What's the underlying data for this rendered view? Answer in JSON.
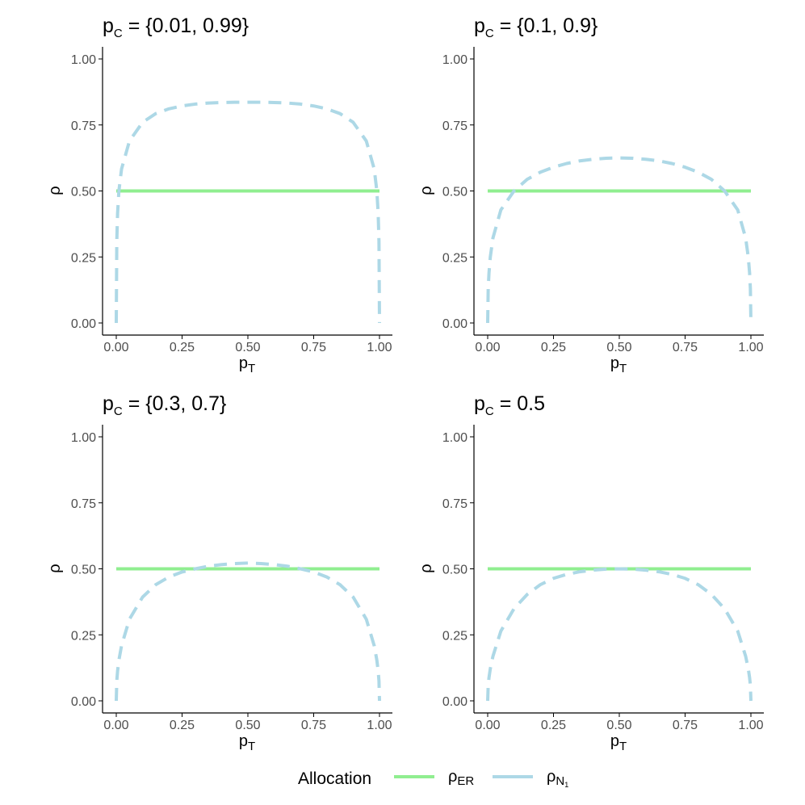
{
  "chart_data": [
    {
      "type": "line",
      "title": {
        "main": "p",
        "sub": "C",
        "rest": " = {0.01, 0.99}"
      },
      "xlabel": {
        "main": "p",
        "sub": "T"
      },
      "ylabel": "ρ",
      "xlim": [
        0,
        1
      ],
      "ylim": [
        0,
        1.05
      ],
      "xticks": [
        "0.00",
        "0.25",
        "0.50",
        "0.75",
        "1.00"
      ],
      "yticks": [
        "0.00",
        "0.25",
        "0.50",
        "0.75",
        "1.00"
      ],
      "x": [
        0.0,
        0.002,
        0.005,
        0.01,
        0.02,
        0.05,
        0.1,
        0.15,
        0.2,
        0.25,
        0.3,
        0.35,
        0.4,
        0.45,
        0.5,
        0.55,
        0.6,
        0.65,
        0.7,
        0.75,
        0.8,
        0.85,
        0.9,
        0.95,
        0.98,
        0.99,
        0.995,
        0.998,
        1.0
      ],
      "series": [
        {
          "name_key": "er",
          "style": "solid",
          "values": [
            0.5,
            0.5,
            0.5,
            0.5,
            0.5,
            0.5,
            0.5,
            0.5,
            0.5,
            0.5,
            0.5,
            0.5,
            0.5,
            0.5,
            0.5,
            0.5,
            0.5,
            0.5,
            0.5,
            0.5,
            0.5,
            0.5,
            0.5,
            0.5,
            0.5,
            0.5,
            0.5,
            0.5,
            0.5
          ]
        },
        {
          "name_key": "n1",
          "style": "dashed",
          "values": [
            0.0,
            0.31,
            0.415,
            0.5,
            0.583,
            0.689,
            0.76,
            0.793,
            0.811,
            0.822,
            0.829,
            0.833,
            0.835,
            0.836,
            0.836,
            0.836,
            0.835,
            0.833,
            0.829,
            0.822,
            0.811,
            0.793,
            0.76,
            0.689,
            0.583,
            0.5,
            0.415,
            0.31,
            0.0
          ]
        }
      ]
    },
    {
      "type": "line",
      "title": {
        "main": "p",
        "sub": "C",
        "rest": " = {0.1, 0.9}"
      },
      "xlabel": {
        "main": "p",
        "sub": "T"
      },
      "ylabel": "ρ",
      "xlim": [
        0,
        1
      ],
      "ylim": [
        0,
        1.05
      ],
      "xticks": [
        "0.00",
        "0.25",
        "0.50",
        "0.75",
        "1.00"
      ],
      "yticks": [
        "0.00",
        "0.25",
        "0.50",
        "0.75",
        "1.00"
      ],
      "x": [
        0.0,
        0.002,
        0.005,
        0.01,
        0.02,
        0.05,
        0.1,
        0.15,
        0.2,
        0.25,
        0.3,
        0.35,
        0.4,
        0.45,
        0.5,
        0.55,
        0.6,
        0.65,
        0.7,
        0.75,
        0.8,
        0.85,
        0.9,
        0.95,
        0.98,
        0.99,
        0.995,
        0.998,
        1.0
      ],
      "series": [
        {
          "name_key": "er",
          "style": "solid",
          "values": [
            0.5,
            0.5,
            0.5,
            0.5,
            0.5,
            0.5,
            0.5,
            0.5,
            0.5,
            0.5,
            0.5,
            0.5,
            0.5,
            0.5,
            0.5,
            0.5,
            0.5,
            0.5,
            0.5,
            0.5,
            0.5,
            0.5,
            0.5,
            0.5,
            0.5,
            0.5,
            0.5,
            0.5,
            0.5
          ]
        },
        {
          "name_key": "n1",
          "style": "dashed",
          "values": [
            0.0,
            0.13,
            0.19,
            0.25,
            0.322,
            0.428,
            0.5,
            0.544,
            0.571,
            0.59,
            0.604,
            0.614,
            0.62,
            0.624,
            0.625,
            0.624,
            0.62,
            0.614,
            0.604,
            0.59,
            0.571,
            0.544,
            0.5,
            0.428,
            0.322,
            0.25,
            0.19,
            0.13,
            0.0
          ]
        }
      ]
    },
    {
      "type": "line",
      "title": {
        "main": "p",
        "sub": "C",
        "rest": " = {0.3, 0.7}"
      },
      "xlabel": {
        "main": "p",
        "sub": "T"
      },
      "ylabel": "ρ",
      "xlim": [
        0,
        1
      ],
      "ylim": [
        0,
        1.05
      ],
      "xticks": [
        "0.00",
        "0.25",
        "0.50",
        "0.75",
        "1.00"
      ],
      "yticks": [
        "0.00",
        "0.25",
        "0.50",
        "0.75",
        "1.00"
      ],
      "x": [
        0.0,
        0.002,
        0.005,
        0.01,
        0.02,
        0.05,
        0.1,
        0.15,
        0.2,
        0.25,
        0.3,
        0.35,
        0.4,
        0.45,
        0.5,
        0.55,
        0.6,
        0.65,
        0.7,
        0.75,
        0.8,
        0.85,
        0.9,
        0.95,
        0.98,
        0.99,
        0.995,
        0.998,
        1.0
      ],
      "series": [
        {
          "name_key": "er",
          "style": "solid",
          "values": [
            0.5,
            0.5,
            0.5,
            0.5,
            0.5,
            0.5,
            0.5,
            0.5,
            0.5,
            0.5,
            0.5,
            0.5,
            0.5,
            0.5,
            0.5,
            0.5,
            0.5,
            0.5,
            0.5,
            0.5,
            0.5,
            0.5,
            0.5,
            0.5,
            0.5,
            0.5,
            0.5,
            0.5,
            0.5
          ]
        },
        {
          "name_key": "n1",
          "style": "dashed",
          "values": [
            0.0,
            0.076,
            0.113,
            0.154,
            0.209,
            0.309,
            0.393,
            0.44,
            0.469,
            0.488,
            0.5,
            0.51,
            0.516,
            0.52,
            0.522,
            0.52,
            0.516,
            0.51,
            0.5,
            0.488,
            0.469,
            0.44,
            0.393,
            0.309,
            0.209,
            0.154,
            0.113,
            0.076,
            0.0
          ]
        }
      ]
    },
    {
      "type": "line",
      "title": {
        "main": "p",
        "sub": "C",
        "rest": " = 0.5"
      },
      "xlabel": {
        "main": "p",
        "sub": "T"
      },
      "ylabel": "ρ",
      "xlim": [
        0,
        1
      ],
      "ylim": [
        0,
        1.05
      ],
      "xticks": [
        "0.00",
        "0.25",
        "0.50",
        "0.75",
        "1.00"
      ],
      "yticks": [
        "0.00",
        "0.25",
        "0.50",
        "0.75",
        "1.00"
      ],
      "x": [
        0.0,
        0.002,
        0.005,
        0.01,
        0.02,
        0.05,
        0.1,
        0.15,
        0.2,
        0.25,
        0.3,
        0.35,
        0.4,
        0.45,
        0.5,
        0.55,
        0.6,
        0.65,
        0.7,
        0.75,
        0.8,
        0.85,
        0.9,
        0.95,
        0.98,
        0.99,
        0.995,
        0.998,
        1.0
      ],
      "series": [
        {
          "name_key": "er",
          "style": "solid",
          "values": [
            0.5,
            0.5,
            0.5,
            0.5,
            0.5,
            0.5,
            0.5,
            0.5,
            0.5,
            0.5,
            0.5,
            0.5,
            0.5,
            0.5,
            0.5,
            0.5,
            0.5,
            0.5,
            0.5,
            0.5,
            0.5,
            0.5,
            0.5,
            0.5,
            0.5,
            0.5,
            0.5,
            0.5,
            0.5
          ]
        },
        {
          "name_key": "n1",
          "style": "dashed",
          "values": [
            0.0,
            0.059,
            0.088,
            0.122,
            0.169,
            0.264,
            0.349,
            0.403,
            0.44,
            0.464,
            0.479,
            0.489,
            0.495,
            0.499,
            0.5,
            0.499,
            0.495,
            0.489,
            0.479,
            0.464,
            0.44,
            0.403,
            0.349,
            0.264,
            0.169,
            0.122,
            0.088,
            0.059,
            0.0
          ]
        }
      ]
    }
  ],
  "legend": {
    "title": "Allocation",
    "position": "bottom",
    "items": [
      {
        "key": "er",
        "main": "ρ",
        "sub": "ER",
        "subsub": ""
      },
      {
        "key": "n1",
        "main": "ρ",
        "sub": "N",
        "subsub": "1"
      }
    ]
  },
  "colors": {
    "er": "#90EE90",
    "n1": "#ADD8E6",
    "axis": "#000000",
    "tick_label": "#4d4d4d"
  }
}
